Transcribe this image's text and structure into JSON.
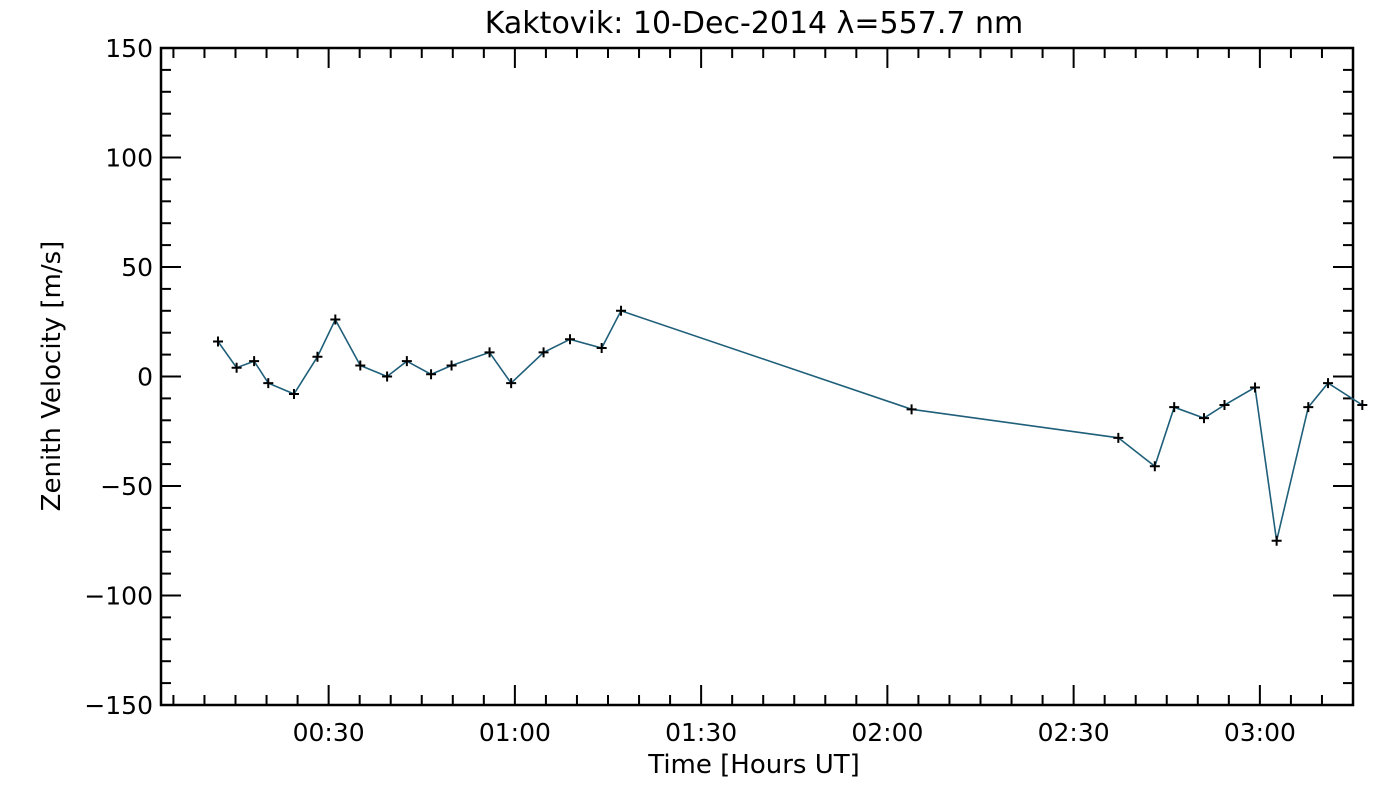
{
  "chart_data": {
    "type": "line",
    "title": "Kaktovik: 10-Dec-2014 λ=557.7 nm",
    "xlabel": "Time [Hours UT]",
    "ylabel": "Zenith Velocity [m/s]",
    "x_unit": "hours UT (decimal)",
    "xlim": [
      0.05,
      3.25
    ],
    "ylim": [
      -150,
      150
    ],
    "x_ticks": [
      {
        "value": 0.5,
        "label": "00:30"
      },
      {
        "value": 1.0,
        "label": "01:00"
      },
      {
        "value": 1.5,
        "label": "01:30"
      },
      {
        "value": 2.0,
        "label": "02:00"
      },
      {
        "value": 2.5,
        "label": "02:30"
      },
      {
        "value": 3.0,
        "label": "03:00"
      }
    ],
    "y_ticks": [
      {
        "value": 150,
        "label": "150"
      },
      {
        "value": 100,
        "label": "100"
      },
      {
        "value": 50,
        "label": "50"
      },
      {
        "value": 0,
        "label": "0"
      },
      {
        "value": -50,
        "label": "−50"
      },
      {
        "value": -100,
        "label": "−100"
      },
      {
        "value": -150,
        "label": "−150"
      }
    ],
    "grid": false,
    "line_color": "#1f5f7a",
    "marker": "plus",
    "series": [
      {
        "x": [
          0.203,
          0.253,
          0.3,
          0.338,
          0.407,
          0.47,
          0.518,
          0.585,
          0.657,
          0.71,
          0.775,
          0.83,
          0.932,
          0.99,
          1.077,
          1.148,
          1.233,
          1.285,
          2.065,
          2.62,
          2.718,
          2.77,
          2.85,
          2.905,
          2.987,
          3.045,
          3.13,
          3.183,
          3.275
        ],
        "y": [
          16,
          4,
          7,
          -3,
          -8,
          9,
          26,
          5,
          0,
          7,
          1,
          5,
          11,
          -3,
          11,
          17,
          13,
          30,
          -15,
          -28,
          -41,
          -14,
          -19,
          -13,
          -5,
          -75,
          -14,
          -3,
          -13
        ]
      }
    ]
  }
}
